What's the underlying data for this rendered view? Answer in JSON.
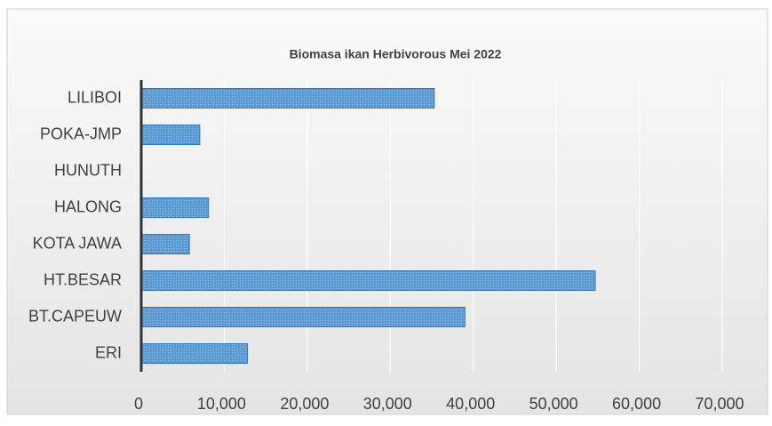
{
  "chart_data": {
    "type": "barh",
    "title": "Biomasa ikan Herbivorous Mei 2022",
    "categories": [
      "LILIBOI",
      "POKA-JMP",
      "HUNUTH",
      "HALONG",
      "KOTA JAWA",
      "HT.BESAR",
      "BT.CAPEUW",
      "ERI"
    ],
    "values": [
      35300,
      7050,
      0,
      8100,
      5800,
      54700,
      39000,
      12800
    ],
    "color": "#5b9bd5",
    "xlim": [
      0,
      70000
    ],
    "xticks": [
      0,
      {
        "value": 10000,
        "label": "10,000"
      },
      {
        "value": 20000,
        "label": "20,000"
      },
      {
        "value": 30000,
        "label": "30,000"
      },
      {
        "value": 40000,
        "label": "40,000"
      },
      {
        "value": 50000,
        "label": "50,000"
      },
      {
        "value": 60000,
        "label": "60,000"
      },
      {
        "value": 70000,
        "label": "70,000"
      }
    ],
    "grid": true
  }
}
